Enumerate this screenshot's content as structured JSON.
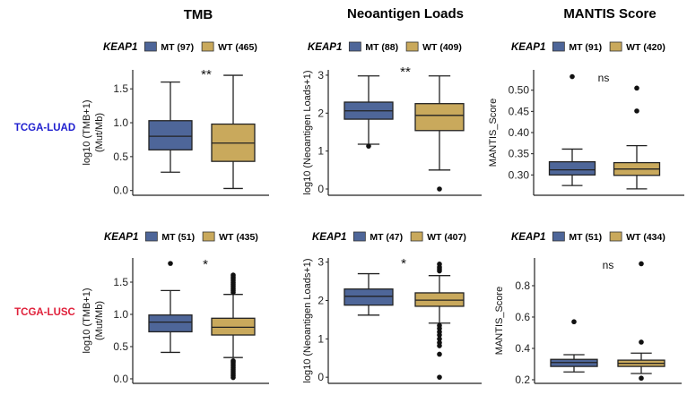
{
  "colors": {
    "MT": "#4e6699",
    "WT": "#c9a95c",
    "luad_label": "#1f1fcf",
    "lusc_label": "#e0203a"
  },
  "column_titles": [
    "TMB",
    "Neoantigen Loads",
    "MANTIS Score"
  ],
  "row_labels": [
    "TCGA-LUAD",
    "TCGA-LUSC"
  ],
  "legend_title": "KEAP1",
  "chart_data": [
    {
      "type": "box",
      "id": "tmb-luad",
      "ylabel": [
        "log10 (TMB+1)",
        "(Mut/Mb)"
      ],
      "ylim": [
        -0.07,
        1.78
      ],
      "ticks": [
        0.0,
        0.5,
        1.0,
        1.5
      ],
      "tick_labels": [
        "0.0",
        "0.5",
        "1.0",
        "1.5"
      ],
      "significance": "**",
      "series": [
        {
          "name": "MT (97)",
          "group": "MT",
          "whisker_low": 0.27,
          "q1": 0.6,
          "median": 0.8,
          "q3": 1.03,
          "whisker_high": 1.6,
          "outliers": []
        },
        {
          "name": "WT (465)",
          "group": "WT",
          "whisker_low": 0.03,
          "q1": 0.43,
          "median": 0.7,
          "q3": 0.98,
          "whisker_high": 1.7,
          "outliers": []
        }
      ]
    },
    {
      "type": "box",
      "id": "neo-luad",
      "ylabel": [
        "log10 (Neoantigen Loads+1)"
      ],
      "ylim": [
        -0.165,
        3.14
      ],
      "ticks": [
        0,
        1,
        2,
        3
      ],
      "tick_labels": [
        "0",
        "1",
        "2",
        "3"
      ],
      "significance": "**",
      "series": [
        {
          "name": "MT (88)",
          "group": "MT",
          "whisker_low": 1.18,
          "q1": 1.84,
          "median": 2.06,
          "q3": 2.29,
          "whisker_high": 2.98,
          "outliers": [
            1.13
          ]
        },
        {
          "name": "WT (409)",
          "group": "WT",
          "whisker_low": 0.5,
          "q1": 1.54,
          "median": 1.94,
          "q3": 2.25,
          "whisker_high": 2.98,
          "outliers": [
            0.0
          ]
        }
      ]
    },
    {
      "type": "box",
      "id": "mantis-luad",
      "ylabel": [
        "MANTIS_Score"
      ],
      "ylim": [
        0.252,
        0.548
      ],
      "ticks": [
        0.3,
        0.35,
        0.4,
        0.45,
        0.5
      ],
      "tick_labels": [
        "0.30",
        "0.35",
        "0.40",
        "0.45",
        "0.50"
      ],
      "significance": "ns",
      "series": [
        {
          "name": "MT (91)",
          "group": "MT",
          "whisker_low": 0.275,
          "q1": 0.3,
          "median": 0.312,
          "q3": 0.331,
          "whisker_high": 0.361,
          "outliers": [
            0.532
          ]
        },
        {
          "name": "WT (420)",
          "group": "WT",
          "whisker_low": 0.267,
          "q1": 0.299,
          "median": 0.314,
          "q3": 0.329,
          "whisker_high": 0.369,
          "outliers": [
            0.505,
            0.451
          ]
        }
      ]
    },
    {
      "type": "box",
      "id": "tmb-lusc",
      "ylabel": [
        "log10 (TMB+1)",
        "(Mut/Mb)"
      ],
      "ylim": [
        -0.07,
        1.875
      ],
      "ticks": [
        0.0,
        0.5,
        1.0,
        1.5
      ],
      "tick_labels": [
        "0.0",
        "0.5",
        "1.0",
        "1.5"
      ],
      "significance": "*",
      "series": [
        {
          "name": "MT (51)",
          "group": "MT",
          "whisker_low": 0.41,
          "q1": 0.73,
          "median": 0.88,
          "q3": 0.99,
          "whisker_high": 1.37,
          "outliers": [
            1.79
          ]
        },
        {
          "name": "WT (435)",
          "group": "WT",
          "whisker_low": 0.33,
          "q1": 0.68,
          "median": 0.8,
          "q3": 0.94,
          "whisker_high": 1.31,
          "outliers": [
            1.34,
            1.37,
            1.4,
            1.43,
            1.46,
            1.49,
            1.52,
            1.55,
            1.58,
            1.61,
            0.02,
            0.05,
            0.08,
            0.11,
            0.14,
            0.17,
            0.2,
            0.23,
            0.26,
            0.28
          ]
        }
      ]
    },
    {
      "type": "box",
      "id": "neo-lusc",
      "ylabel": [
        "log10 (Neoantigen Loads+1)"
      ],
      "ylim": [
        -0.16,
        3.11
      ],
      "ticks": [
        0,
        1,
        2,
        3
      ],
      "tick_labels": [
        "0",
        "1",
        "2",
        "3"
      ],
      "significance": "*",
      "series": [
        {
          "name": "MT (47)",
          "group": "MT",
          "whisker_low": 1.62,
          "q1": 1.88,
          "median": 2.11,
          "q3": 2.3,
          "whisker_high": 2.7,
          "outliers": []
        },
        {
          "name": "WT (407)",
          "group": "WT",
          "whisker_low": 1.41,
          "q1": 1.85,
          "median": 2.01,
          "q3": 2.2,
          "whisker_high": 2.65,
          "outliers": [
            2.95,
            2.87,
            2.82,
            2.77,
            1.35,
            1.27,
            1.18,
            1.1,
            1.0,
            0.9,
            0.82,
            0.6,
            0.0
          ]
        }
      ]
    },
    {
      "type": "box",
      "id": "mantis-lusc",
      "ylabel": [
        "MANTIS_Score"
      ],
      "ylim": [
        0.177,
        0.977
      ],
      "ticks": [
        0.2,
        0.4,
        0.6,
        0.8
      ],
      "tick_labels": [
        "0.2",
        "0.4",
        "0.6",
        "0.8"
      ],
      "significance": "ns",
      "series": [
        {
          "name": "MT (51)",
          "group": "MT",
          "whisker_low": 0.25,
          "q1": 0.285,
          "median": 0.31,
          "q3": 0.33,
          "whisker_high": 0.36,
          "outliers": [
            0.57
          ]
        },
        {
          "name": "WT (434)",
          "group": "WT",
          "whisker_low": 0.24,
          "q1": 0.285,
          "median": 0.305,
          "q3": 0.325,
          "whisker_high": 0.37,
          "outliers": [
            0.94,
            0.44,
            0.21
          ]
        }
      ]
    }
  ]
}
